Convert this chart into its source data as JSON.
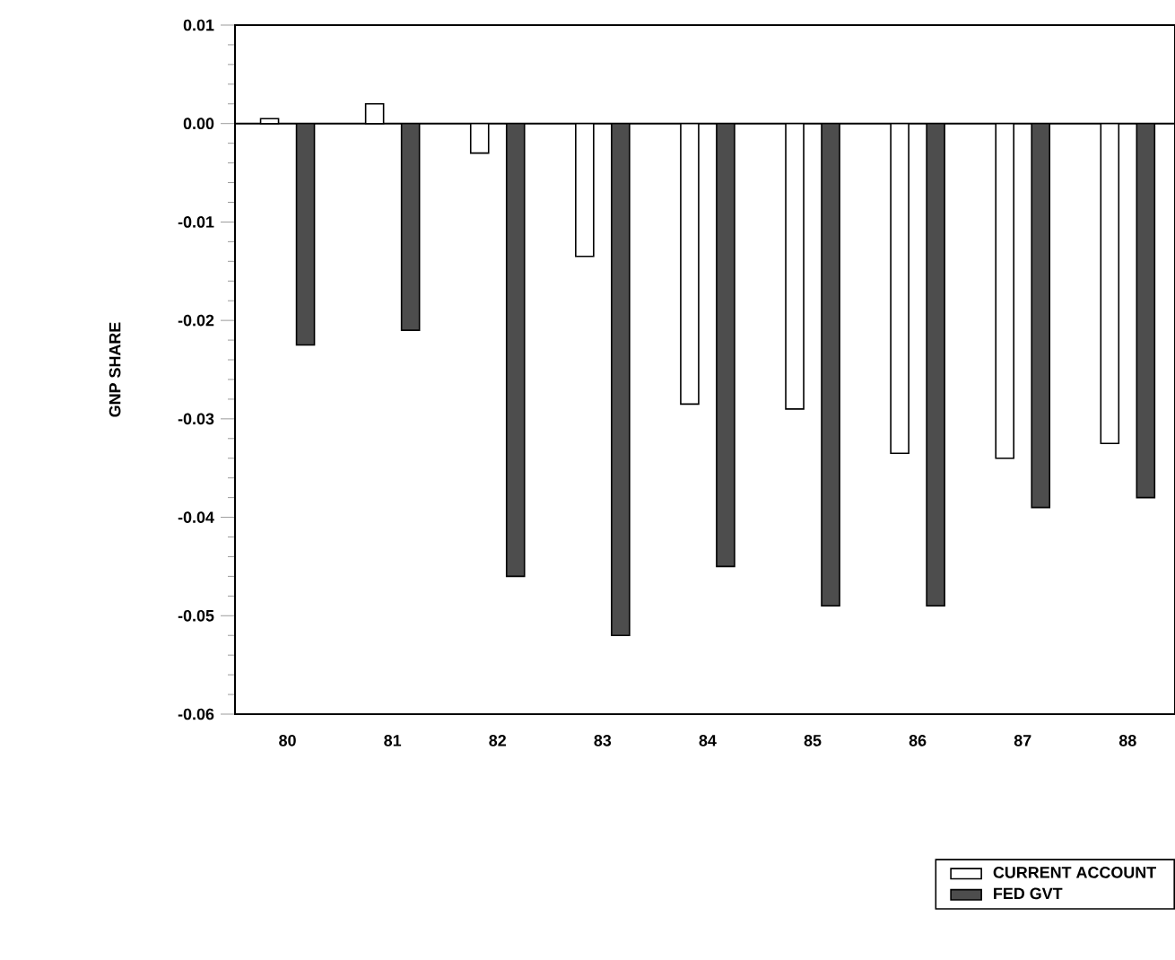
{
  "chart_data": {
    "type": "bar",
    "ylabel": "GNP SHARE",
    "categories": [
      "80",
      "81",
      "82",
      "83",
      "84",
      "85",
      "86",
      "87",
      "88"
    ],
    "series": [
      {
        "name": "CURRENT ACCOUNT",
        "color": "#ffffff",
        "values": [
          0.0005,
          0.002,
          -0.003,
          -0.0135,
          -0.0285,
          -0.029,
          -0.0335,
          -0.034,
          -0.0325
        ]
      },
      {
        "name": "FED GVT",
        "color": "#4d4d4d",
        "values": [
          -0.0225,
          -0.021,
          -0.046,
          -0.052,
          -0.045,
          -0.049,
          -0.049,
          -0.039,
          -0.038
        ]
      }
    ],
    "ylim": [
      -0.06,
      0.01
    ],
    "yticks": [
      -0.06,
      -0.05,
      -0.04,
      -0.03,
      -0.02,
      -0.01,
      {
        "value": 0,
        "label": "0.00"
      },
      0.01
    ],
    "ref_lines": [
      {
        "axis": "y",
        "value": 0
      }
    ],
    "grid": false,
    "legend": "bottom right"
  }
}
